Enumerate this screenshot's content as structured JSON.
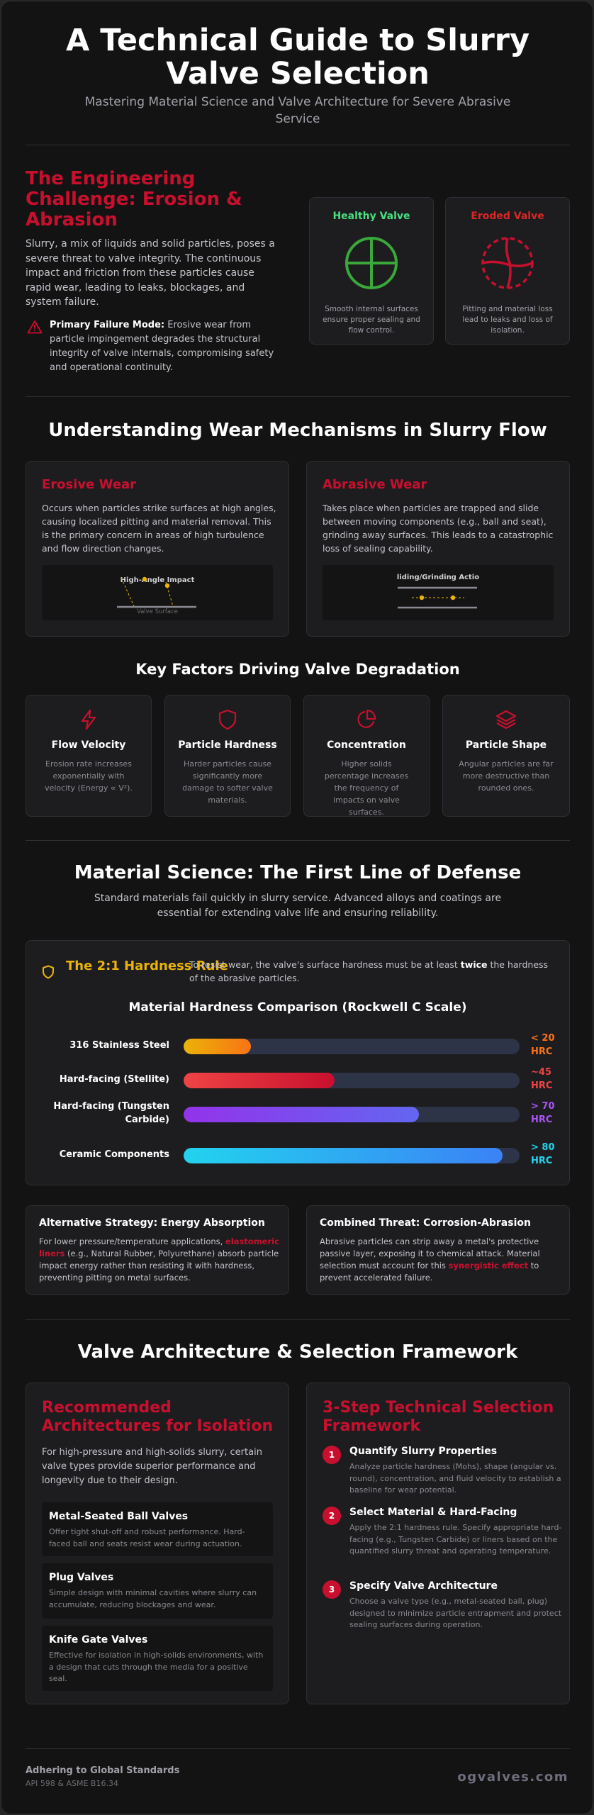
{
  "header": {
    "title": "A Technical Guide to Slurry Valve Selection",
    "subtitle": "Mastering Material Science and Valve Architecture for Severe Abrasive Service"
  },
  "challenge": {
    "title": "The Engineering Challenge: Erosion & Abrasion",
    "body": "Slurry, a mix of liquids and solid particles, poses a severe threat to valve integrity. The continuous impact and friction from these particles cause rapid wear, leading to leaks, blockages, and system failure.",
    "warning_label": "Primary Failure Mode:",
    "warning_text": " Erosive wear from particle impingement degrades the structural integrity of valve internals, compromising safety and operational continuity.",
    "healthy": {
      "title": "Healthy Valve",
      "desc": "Smooth internal surfaces ensure proper sealing and flow control.",
      "color": "#4ade80"
    },
    "eroded": {
      "title": "Eroded Valve",
      "desc": "Pitting and material loss lead to leaks and loss of isolation.",
      "color": "#dc2626"
    }
  },
  "wear": {
    "title": "Understanding Wear Mechanisms in Slurry Flow",
    "erosive": {
      "title": "Erosive Wear",
      "body": "Occurs when particles strike surfaces at high angles, causing localized pitting and material removal. This is the primary concern in areas of high turbulence and flow direction changes.",
      "demo_label": "High-Angle Impact",
      "demo_surface": "Valve Surface"
    },
    "abrasive": {
      "title": "Abrasive Wear",
      "body": "Takes place when particles are trapped and slide between moving components (e.g., ball and seat), grinding away surfaces. This leads to a catastrophic loss of sealing capability.",
      "demo_label": "liding/Grinding Actio"
    }
  },
  "factors": {
    "title": "Key Factors Driving Valve Degradation",
    "items": [
      {
        "title": "Flow Velocity",
        "desc": "Erosion rate increases exponentially with velocity (Energy ∝ V²).",
        "icon": "lightning-icon"
      },
      {
        "title": "Particle Hardness",
        "desc": "Harder particles cause significantly more damage to softer valve materials.",
        "icon": "shield-icon"
      },
      {
        "title": "Concentration",
        "desc": "Higher solids percentage increases the frequency of impacts on valve surfaces.",
        "icon": "pie-chart-icon"
      },
      {
        "title": "Particle Shape",
        "desc": "Angular particles are far more destructive than rounded ones.",
        "icon": "layers-icon"
      }
    ]
  },
  "material": {
    "title": "Material Science: The First Line of Defense",
    "subtitle": "Standard materials fail quickly in slurry service. Advanced alloys and coatings are essential for extending valve life and ensuring reliability.",
    "rule_title": "The 2:1 Hardness Rule",
    "rule_pre": "To resist wear, the valve's surface hardness must be at least ",
    "rule_bold": "twice",
    "rule_post": " the hardness of the abrasive particles.",
    "comparison_title": "Material Hardness Comparison (Rockwell C Scale)",
    "bars": [
      {
        "name": "316 Stainless Steel",
        "value": "< 20 HRC",
        "fraction": 0.2,
        "color_from": "#eab308",
        "color_to": "#f97316",
        "value_color": "#f97316"
      },
      {
        "name": "Hard-facing (Stellite)",
        "value": "~45 HRC",
        "fraction": 0.45,
        "color_from": "#ef4444",
        "color_to": "#c8102e",
        "value_color": "#ef4444"
      },
      {
        "name": "Hard-facing (Tungsten Carbide)",
        "value": "> 70 HRC",
        "fraction": 0.7,
        "color_from": "#9333ea",
        "color_to": "#6366f1",
        "value_color": "#a855f7"
      },
      {
        "name": "Ceramic Components",
        "value": "> 80 HRC",
        "fraction": 0.95,
        "color_from": "#22d3ee",
        "color_to": "#3b82f6",
        "value_color": "#22d3ee"
      }
    ],
    "energy": {
      "title": "Alternative Strategy: Energy Absorption",
      "pre": "For lower pressure/temperature applications, ",
      "highlight": "elastomeric liners",
      "post": " (e.g., Natural Rubber, Polyurethane) absorb particle impact energy rather than resisting it with hardness, preventing pitting on metal surfaces."
    },
    "corrosion": {
      "title": "Combined Threat: Corrosion-Abrasion",
      "pre": "Abrasive particles can strip away a metal's protective passive layer, exposing it to chemical attack. Material selection must account for this ",
      "highlight": "synergistic effect",
      "post": " to prevent accelerated failure."
    }
  },
  "architecture": {
    "title": "Valve Architecture & Selection Framework",
    "recommended": {
      "title": "Recommended Architectures for Isolation",
      "intro": "For high-pressure and high-solids slurry, certain valve types provide superior performance and longevity due to their design.",
      "items": [
        {
          "title": "Metal-Seated Ball Valves",
          "desc": "Offer tight shut-off and robust performance. Hard-faced ball and seats resist wear during actuation."
        },
        {
          "title": "Plug Valves",
          "desc": "Simple design with minimal cavities where slurry can accumulate, reducing blockages and wear."
        },
        {
          "title": "Knife Gate Valves",
          "desc": "Effective for isolation in high-solids environments, with a design that cuts through the media for a positive seal."
        }
      ]
    },
    "framework": {
      "title": "3-Step Technical Selection Framework",
      "steps": [
        {
          "num": "1",
          "title": "Quantify Slurry Properties",
          "desc": "Analyze particle hardness (Mohs), shape (angular vs. round), concentration, and fluid velocity to establish a baseline for wear potential."
        },
        {
          "num": "2",
          "title": "Select Material & Hard-Facing",
          "desc": "Apply the 2:1 hardness rule. Specify appropriate hard-facing (e.g., Tungsten Carbide) or liners based on the quantified slurry threat and operating temperature."
        },
        {
          "num": "3",
          "title": "Specify Valve Architecture",
          "desc": "Choose a valve type (e.g., metal-seated ball, plug) designed to minimize particle entrapment and protect sealing surfaces during operation."
        }
      ]
    }
  },
  "footer": {
    "title": "Adhering to Global Standards",
    "standards": "API 598 & ASME B16.34",
    "brand": "ogvalves.com"
  },
  "colors": {
    "accent_red": "#c8102e",
    "gold": "#eab308",
    "background": "#131313"
  }
}
